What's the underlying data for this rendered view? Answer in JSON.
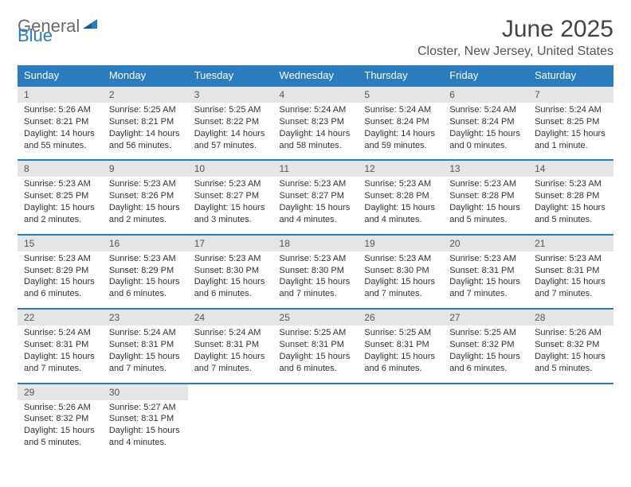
{
  "logo": {
    "text1": "General",
    "text2": "Blue"
  },
  "title": {
    "month": "June 2025",
    "location": "Closter, New Jersey, United States"
  },
  "colors": {
    "header_bg": "#2b7bbf",
    "numrow_bg": "#e5e5e5",
    "border": "#2b7bbf",
    "logo_gray": "#6a6a6a",
    "logo_blue": "#2b7bbf"
  },
  "fonts": {
    "month_size": 30,
    "location_size": 16,
    "dayhead_size": 13,
    "daynum_size": 12,
    "cell_size": 11
  },
  "dayNames": [
    "Sunday",
    "Monday",
    "Tuesday",
    "Wednesday",
    "Thursday",
    "Friday",
    "Saturday"
  ],
  "weeks": [
    [
      {
        "n": "1",
        "sunrise": "Sunrise: 5:26 AM",
        "sunset": "Sunset: 8:21 PM",
        "day1": "Daylight: 14 hours",
        "day2": "and 55 minutes."
      },
      {
        "n": "2",
        "sunrise": "Sunrise: 5:25 AM",
        "sunset": "Sunset: 8:21 PM",
        "day1": "Daylight: 14 hours",
        "day2": "and 56 minutes."
      },
      {
        "n": "3",
        "sunrise": "Sunrise: 5:25 AM",
        "sunset": "Sunset: 8:22 PM",
        "day1": "Daylight: 14 hours",
        "day2": "and 57 minutes."
      },
      {
        "n": "4",
        "sunrise": "Sunrise: 5:24 AM",
        "sunset": "Sunset: 8:23 PM",
        "day1": "Daylight: 14 hours",
        "day2": "and 58 minutes."
      },
      {
        "n": "5",
        "sunrise": "Sunrise: 5:24 AM",
        "sunset": "Sunset: 8:24 PM",
        "day1": "Daylight: 14 hours",
        "day2": "and 59 minutes."
      },
      {
        "n": "6",
        "sunrise": "Sunrise: 5:24 AM",
        "sunset": "Sunset: 8:24 PM",
        "day1": "Daylight: 15 hours",
        "day2": "and 0 minutes."
      },
      {
        "n": "7",
        "sunrise": "Sunrise: 5:24 AM",
        "sunset": "Sunset: 8:25 PM",
        "day1": "Daylight: 15 hours",
        "day2": "and 1 minute."
      }
    ],
    [
      {
        "n": "8",
        "sunrise": "Sunrise: 5:23 AM",
        "sunset": "Sunset: 8:25 PM",
        "day1": "Daylight: 15 hours",
        "day2": "and 2 minutes."
      },
      {
        "n": "9",
        "sunrise": "Sunrise: 5:23 AM",
        "sunset": "Sunset: 8:26 PM",
        "day1": "Daylight: 15 hours",
        "day2": "and 2 minutes."
      },
      {
        "n": "10",
        "sunrise": "Sunrise: 5:23 AM",
        "sunset": "Sunset: 8:27 PM",
        "day1": "Daylight: 15 hours",
        "day2": "and 3 minutes."
      },
      {
        "n": "11",
        "sunrise": "Sunrise: 5:23 AM",
        "sunset": "Sunset: 8:27 PM",
        "day1": "Daylight: 15 hours",
        "day2": "and 4 minutes."
      },
      {
        "n": "12",
        "sunrise": "Sunrise: 5:23 AM",
        "sunset": "Sunset: 8:28 PM",
        "day1": "Daylight: 15 hours",
        "day2": "and 4 minutes."
      },
      {
        "n": "13",
        "sunrise": "Sunrise: 5:23 AM",
        "sunset": "Sunset: 8:28 PM",
        "day1": "Daylight: 15 hours",
        "day2": "and 5 minutes."
      },
      {
        "n": "14",
        "sunrise": "Sunrise: 5:23 AM",
        "sunset": "Sunset: 8:28 PM",
        "day1": "Daylight: 15 hours",
        "day2": "and 5 minutes."
      }
    ],
    [
      {
        "n": "15",
        "sunrise": "Sunrise: 5:23 AM",
        "sunset": "Sunset: 8:29 PM",
        "day1": "Daylight: 15 hours",
        "day2": "and 6 minutes."
      },
      {
        "n": "16",
        "sunrise": "Sunrise: 5:23 AM",
        "sunset": "Sunset: 8:29 PM",
        "day1": "Daylight: 15 hours",
        "day2": "and 6 minutes."
      },
      {
        "n": "17",
        "sunrise": "Sunrise: 5:23 AM",
        "sunset": "Sunset: 8:30 PM",
        "day1": "Daylight: 15 hours",
        "day2": "and 6 minutes."
      },
      {
        "n": "18",
        "sunrise": "Sunrise: 5:23 AM",
        "sunset": "Sunset: 8:30 PM",
        "day1": "Daylight: 15 hours",
        "day2": "and 7 minutes."
      },
      {
        "n": "19",
        "sunrise": "Sunrise: 5:23 AM",
        "sunset": "Sunset: 8:30 PM",
        "day1": "Daylight: 15 hours",
        "day2": "and 7 minutes."
      },
      {
        "n": "20",
        "sunrise": "Sunrise: 5:23 AM",
        "sunset": "Sunset: 8:31 PM",
        "day1": "Daylight: 15 hours",
        "day2": "and 7 minutes."
      },
      {
        "n": "21",
        "sunrise": "Sunrise: 5:23 AM",
        "sunset": "Sunset: 8:31 PM",
        "day1": "Daylight: 15 hours",
        "day2": "and 7 minutes."
      }
    ],
    [
      {
        "n": "22",
        "sunrise": "Sunrise: 5:24 AM",
        "sunset": "Sunset: 8:31 PM",
        "day1": "Daylight: 15 hours",
        "day2": "and 7 minutes."
      },
      {
        "n": "23",
        "sunrise": "Sunrise: 5:24 AM",
        "sunset": "Sunset: 8:31 PM",
        "day1": "Daylight: 15 hours",
        "day2": "and 7 minutes."
      },
      {
        "n": "24",
        "sunrise": "Sunrise: 5:24 AM",
        "sunset": "Sunset: 8:31 PM",
        "day1": "Daylight: 15 hours",
        "day2": "and 7 minutes."
      },
      {
        "n": "25",
        "sunrise": "Sunrise: 5:25 AM",
        "sunset": "Sunset: 8:31 PM",
        "day1": "Daylight: 15 hours",
        "day2": "and 6 minutes."
      },
      {
        "n": "26",
        "sunrise": "Sunrise: 5:25 AM",
        "sunset": "Sunset: 8:31 PM",
        "day1": "Daylight: 15 hours",
        "day2": "and 6 minutes."
      },
      {
        "n": "27",
        "sunrise": "Sunrise: 5:25 AM",
        "sunset": "Sunset: 8:32 PM",
        "day1": "Daylight: 15 hours",
        "day2": "and 6 minutes."
      },
      {
        "n": "28",
        "sunrise": "Sunrise: 5:26 AM",
        "sunset": "Sunset: 8:32 PM",
        "day1": "Daylight: 15 hours",
        "day2": "and 5 minutes."
      }
    ],
    [
      {
        "n": "29",
        "sunrise": "Sunrise: 5:26 AM",
        "sunset": "Sunset: 8:32 PM",
        "day1": "Daylight: 15 hours",
        "day2": "and 5 minutes."
      },
      {
        "n": "30",
        "sunrise": "Sunrise: 5:27 AM",
        "sunset": "Sunset: 8:31 PM",
        "day1": "Daylight: 15 hours",
        "day2": "and 4 minutes."
      },
      null,
      null,
      null,
      null,
      null
    ]
  ]
}
